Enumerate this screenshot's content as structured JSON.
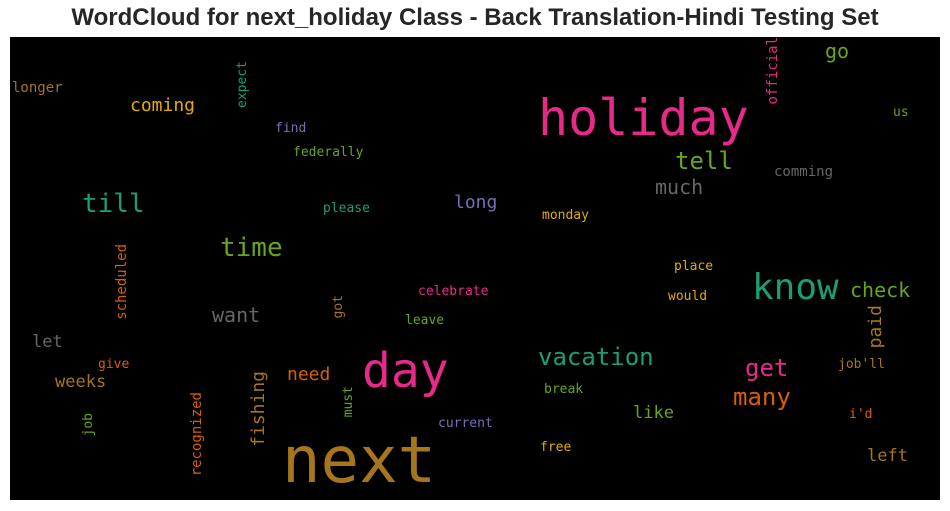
{
  "title": "WordCloud for next_holiday Class - Back Translation-Hindi Testing Set",
  "colors": {
    "pink": "#e7298a",
    "teal": "#1b9e77",
    "orange": "#d95f02",
    "green": "#66a61e",
    "gold": "#e6ab02",
    "brown": "#a6761d",
    "purple": "#7570b3",
    "gray": "#666666"
  },
  "words": [
    {
      "text": "holiday",
      "color": "pink"
    },
    {
      "text": "next",
      "color": "brown"
    },
    {
      "text": "day",
      "color": "pink"
    },
    {
      "text": "know",
      "color": "teal"
    },
    {
      "text": "time",
      "color": "green"
    },
    {
      "text": "tell",
      "color": "green"
    },
    {
      "text": "till",
      "color": "teal"
    },
    {
      "text": "vacation",
      "color": "teal"
    },
    {
      "text": "much",
      "color": "gray"
    },
    {
      "text": "get",
      "color": "pink"
    },
    {
      "text": "many",
      "color": "orange"
    },
    {
      "text": "check",
      "color": "green"
    },
    {
      "text": "want",
      "color": "gray"
    },
    {
      "text": "coming",
      "color": "gold"
    },
    {
      "text": "need",
      "color": "orange"
    },
    {
      "text": "go",
      "color": "green"
    },
    {
      "text": "long",
      "color": "purple"
    },
    {
      "text": "weeks",
      "color": "brown"
    },
    {
      "text": "let",
      "color": "gray"
    },
    {
      "text": "like",
      "color": "green"
    },
    {
      "text": "left",
      "color": "brown"
    },
    {
      "text": "paid",
      "color": "brown"
    },
    {
      "text": "fishing",
      "color": "brown"
    },
    {
      "text": "comming",
      "color": "gray"
    },
    {
      "text": "longer",
      "color": "brown"
    },
    {
      "text": "expect",
      "color": "teal"
    },
    {
      "text": "official",
      "color": "pink"
    },
    {
      "text": "us",
      "color": "green"
    },
    {
      "text": "find",
      "color": "purple"
    },
    {
      "text": "federally",
      "color": "green"
    },
    {
      "text": "please",
      "color": "teal"
    },
    {
      "text": "monday",
      "color": "gold"
    },
    {
      "text": "scheduled",
      "color": "orange"
    },
    {
      "text": "place",
      "color": "gold"
    },
    {
      "text": "would",
      "color": "gold"
    },
    {
      "text": "celebrate",
      "color": "pink"
    },
    {
      "text": "got",
      "color": "brown"
    },
    {
      "text": "leave",
      "color": "green"
    },
    {
      "text": "give",
      "color": "orange"
    },
    {
      "text": "job'll",
      "color": "brown"
    },
    {
      "text": "break",
      "color": "green"
    },
    {
      "text": "must",
      "color": "green"
    },
    {
      "text": "i'd",
      "color": "orange"
    },
    {
      "text": "job",
      "color": "green"
    },
    {
      "text": "recognized",
      "color": "orange"
    },
    {
      "text": "current",
      "color": "purple"
    },
    {
      "text": "free",
      "color": "gold"
    }
  ]
}
